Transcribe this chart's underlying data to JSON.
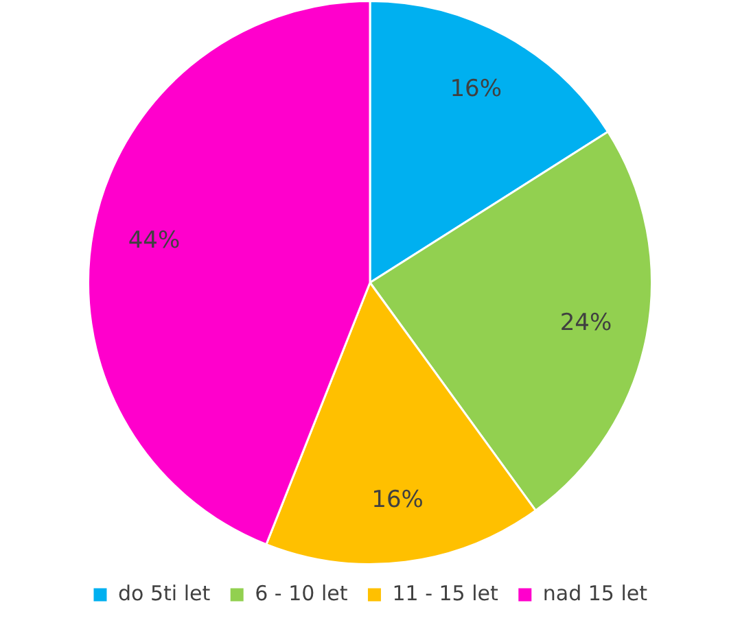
{
  "chart_data": {
    "type": "pie",
    "categories": [
      "do 5ti let",
      "6 - 10 let",
      "11 - 15 let",
      "nad 15 let"
    ],
    "values": [
      16,
      24,
      16,
      44
    ],
    "colors": [
      "#00b0f0",
      "#92d050",
      "#ffc000",
      "#ff00cc"
    ],
    "value_labels": [
      "16%",
      "24%",
      "16%",
      "44%"
    ],
    "legend": "bottom"
  }
}
